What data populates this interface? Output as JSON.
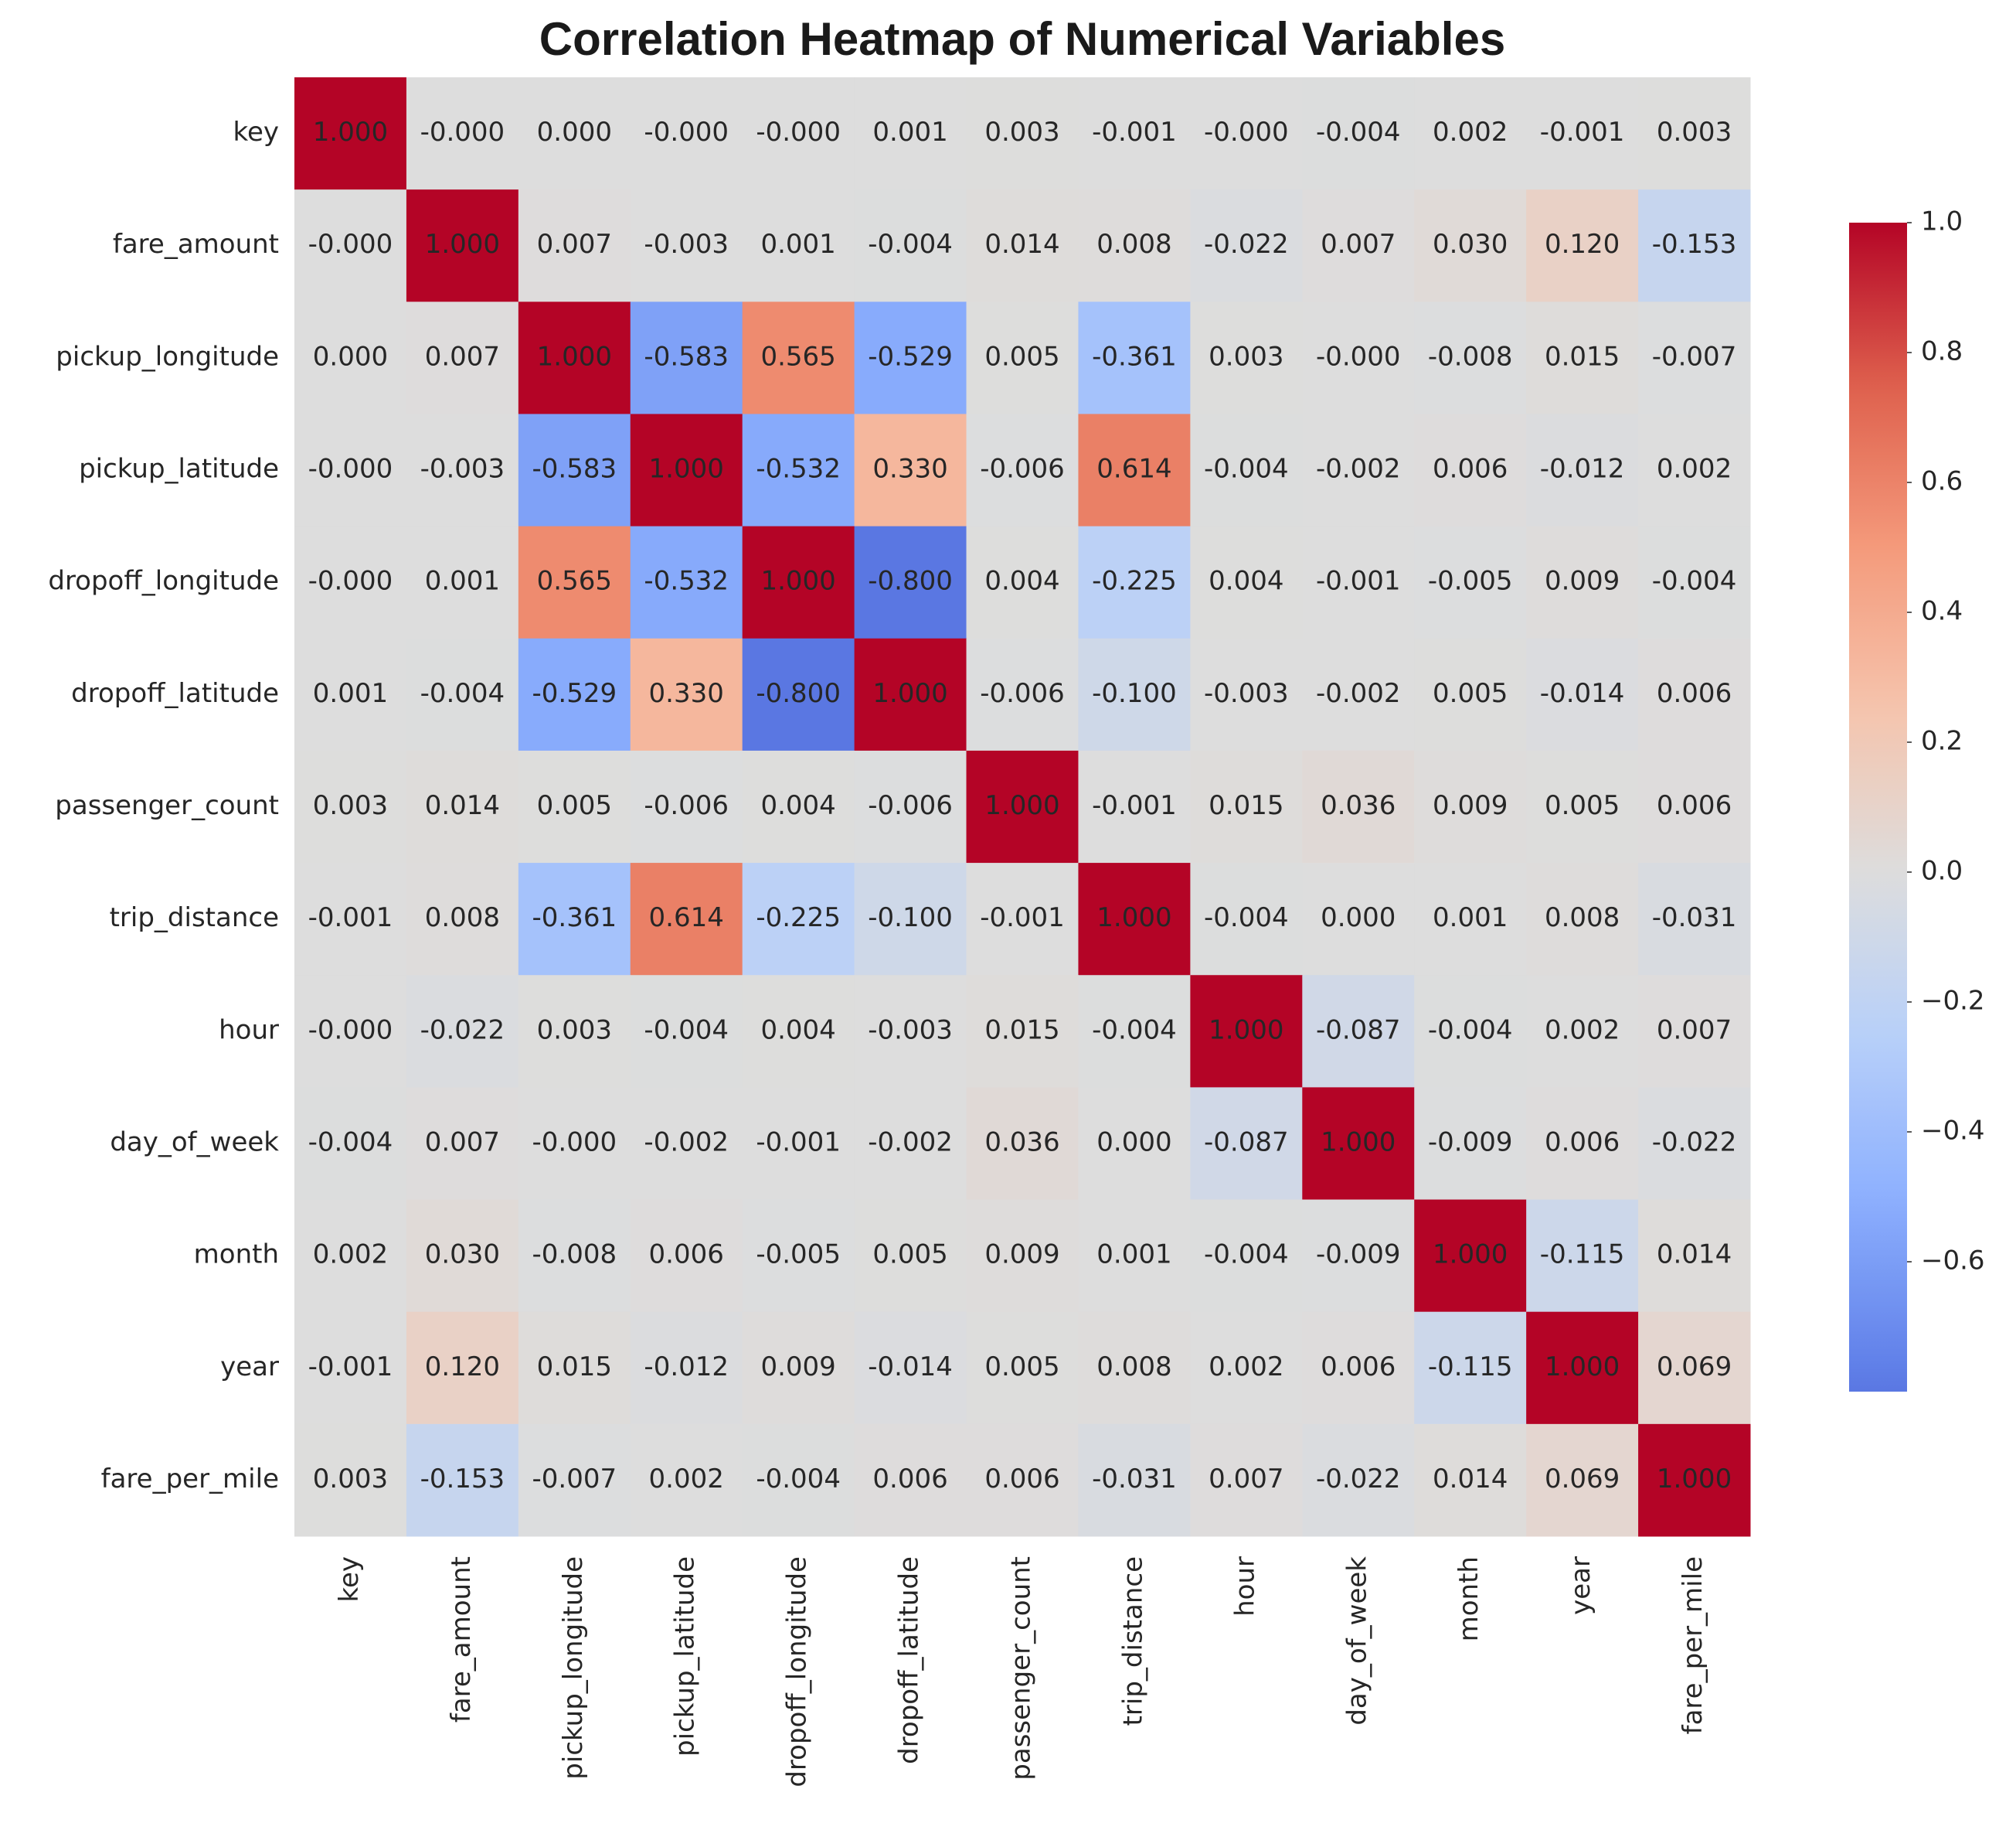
{
  "chart_data": {
    "type": "heatmap",
    "title": "Correlation Heatmap of Numerical Variables",
    "categories": [
      "key",
      "fare_amount",
      "pickup_longitude",
      "pickup_latitude",
      "dropoff_longitude",
      "dropoff_latitude",
      "passenger_count",
      "trip_distance",
      "hour",
      "day_of_week",
      "month",
      "year",
      "fare_per_mile"
    ],
    "values": [
      [
        1,
        0,
        0,
        0,
        0,
        0.001,
        0.003,
        -0.001,
        0,
        -0.004,
        0.002,
        -0.001,
        0.003
      ],
      [
        0,
        1,
        0.007,
        -0.003,
        0.001,
        -0.004,
        0.014,
        0.008,
        -0.022,
        0.007,
        0.03,
        0.12,
        -0.153
      ],
      [
        0,
        0.007,
        1,
        -0.583,
        0.565,
        -0.529,
        0.005,
        -0.361,
        0.003,
        0,
        -0.008,
        0.015,
        -0.007
      ],
      [
        0,
        -0.003,
        -0.583,
        1,
        -0.532,
        0.33,
        -0.006,
        0.614,
        -0.004,
        -0.002,
        0.006,
        -0.012,
        0.002
      ],
      [
        0,
        0.001,
        0.565,
        -0.532,
        1,
        -0.8,
        0.004,
        -0.225,
        0.004,
        -0.001,
        -0.005,
        0.009,
        -0.004
      ],
      [
        0.001,
        -0.004,
        -0.529,
        0.33,
        -0.8,
        1,
        -0.006,
        -0.1,
        -0.003,
        -0.002,
        0.005,
        -0.014,
        0.006
      ],
      [
        0.003,
        0.014,
        0.005,
        -0.006,
        0.004,
        -0.006,
        1,
        -0.001,
        0.015,
        0.036,
        0.009,
        0.005,
        0.006
      ],
      [
        -0.001,
        0.008,
        -0.361,
        0.614,
        -0.225,
        -0.1,
        -0.001,
        1,
        -0.004,
        0,
        0.001,
        0.008,
        -0.031
      ],
      [
        0,
        -0.022,
        0.003,
        -0.004,
        0.004,
        -0.003,
        0.015,
        -0.004,
        1,
        -0.087,
        -0.004,
        0.002,
        0.007
      ],
      [
        -0.004,
        0.007,
        0,
        -0.002,
        -0.001,
        -0.002,
        0.036,
        0,
        -0.087,
        1,
        -0.009,
        0.006,
        -0.022
      ],
      [
        0.002,
        0.03,
        -0.008,
        0.006,
        -0.005,
        0.005,
        0.009,
        0.001,
        -0.004,
        -0.009,
        1,
        -0.115,
        0.014
      ],
      [
        -0.001,
        0.12,
        0.015,
        -0.012,
        0.009,
        -0.014,
        0.005,
        0.008,
        0.002,
        0.006,
        -0.115,
        1,
        0.069
      ],
      [
        0.003,
        -0.153,
        -0.007,
        0.002,
        -0.004,
        0.006,
        0.006,
        -0.031,
        0.007,
        -0.022,
        0.014,
        0.069,
        1
      ]
    ],
    "value_labels": [
      [
        "1.000",
        "-0.000",
        "0.000",
        "-0.000",
        "-0.000",
        "0.001",
        "0.003",
        "-0.001",
        "-0.000",
        "-0.004",
        "0.002",
        "-0.001",
        "0.003"
      ],
      [
        "-0.000",
        "1.000",
        "0.007",
        "-0.003",
        "0.001",
        "-0.004",
        "0.014",
        "0.008",
        "-0.022",
        "0.007",
        "0.030",
        "0.120",
        "-0.153"
      ],
      [
        "0.000",
        "0.007",
        "1.000",
        "-0.583",
        "0.565",
        "-0.529",
        "0.005",
        "-0.361",
        "0.003",
        "-0.000",
        "-0.008",
        "0.015",
        "-0.007"
      ],
      [
        "-0.000",
        "-0.003",
        "-0.583",
        "1.000",
        "-0.532",
        "0.330",
        "-0.006",
        "0.614",
        "-0.004",
        "-0.002",
        "0.006",
        "-0.012",
        "0.002"
      ],
      [
        "-0.000",
        "0.001",
        "0.565",
        "-0.532",
        "1.000",
        "-0.800",
        "0.004",
        "-0.225",
        "0.004",
        "-0.001",
        "-0.005",
        "0.009",
        "-0.004"
      ],
      [
        "0.001",
        "-0.004",
        "-0.529",
        "0.330",
        "-0.800",
        "1.000",
        "-0.006",
        "-0.100",
        "-0.003",
        "-0.002",
        "0.005",
        "-0.014",
        "0.006"
      ],
      [
        "0.003",
        "0.014",
        "0.005",
        "-0.006",
        "0.004",
        "-0.006",
        "1.000",
        "-0.001",
        "0.015",
        "0.036",
        "0.009",
        "0.005",
        "0.006"
      ],
      [
        "-0.001",
        "0.008",
        "-0.361",
        "0.614",
        "-0.225",
        "-0.100",
        "-0.001",
        "1.000",
        "-0.004",
        "0.000",
        "0.001",
        "0.008",
        "-0.031"
      ],
      [
        "-0.000",
        "-0.022",
        "0.003",
        "-0.004",
        "0.004",
        "-0.003",
        "0.015",
        "-0.004",
        "1.000",
        "-0.087",
        "-0.004",
        "0.002",
        "0.007"
      ],
      [
        "-0.004",
        "0.007",
        "-0.000",
        "-0.002",
        "-0.001",
        "-0.002",
        "0.036",
        "0.000",
        "-0.087",
        "1.000",
        "-0.009",
        "0.006",
        "-0.022"
      ],
      [
        "0.002",
        "0.030",
        "-0.008",
        "0.006",
        "-0.005",
        "0.005",
        "0.009",
        "0.001",
        "-0.004",
        "-0.009",
        "1.000",
        "-0.115",
        "0.014"
      ],
      [
        "-0.001",
        "0.120",
        "0.015",
        "-0.012",
        "0.009",
        "-0.014",
        "0.005",
        "0.008",
        "0.002",
        "0.006",
        "-0.115",
        "1.000",
        "0.069"
      ],
      [
        "0.003",
        "-0.153",
        "-0.007",
        "0.002",
        "-0.004",
        "0.006",
        "0.006",
        "-0.031",
        "0.007",
        "-0.022",
        "0.014",
        "0.069",
        "1.000"
      ]
    ],
    "colormap": [
      "#3b4cc0",
      "#6282ea",
      "#8db0fe",
      "#b8d0f9",
      "#dddddd",
      "#f5c4ad",
      "#f49a7b",
      "#de604d",
      "#b40426"
    ],
    "center": 0,
    "zlim": [
      -0.8,
      1
    ],
    "zticks": [
      {
        "value": 1,
        "label": "1.0"
      },
      {
        "value": 0.8,
        "label": "0.8"
      },
      {
        "value": 0.6,
        "label": "0.6"
      },
      {
        "value": 0.4,
        "label": "0.4"
      },
      {
        "value": 0.2,
        "label": "0.2"
      },
      {
        "value": 0,
        "label": "0.0"
      },
      {
        "value": -0.2,
        "label": "−0.2"
      },
      {
        "value": -0.4,
        "label": "−0.4"
      },
      {
        "value": -0.6,
        "label": "−0.6"
      }
    ]
  }
}
